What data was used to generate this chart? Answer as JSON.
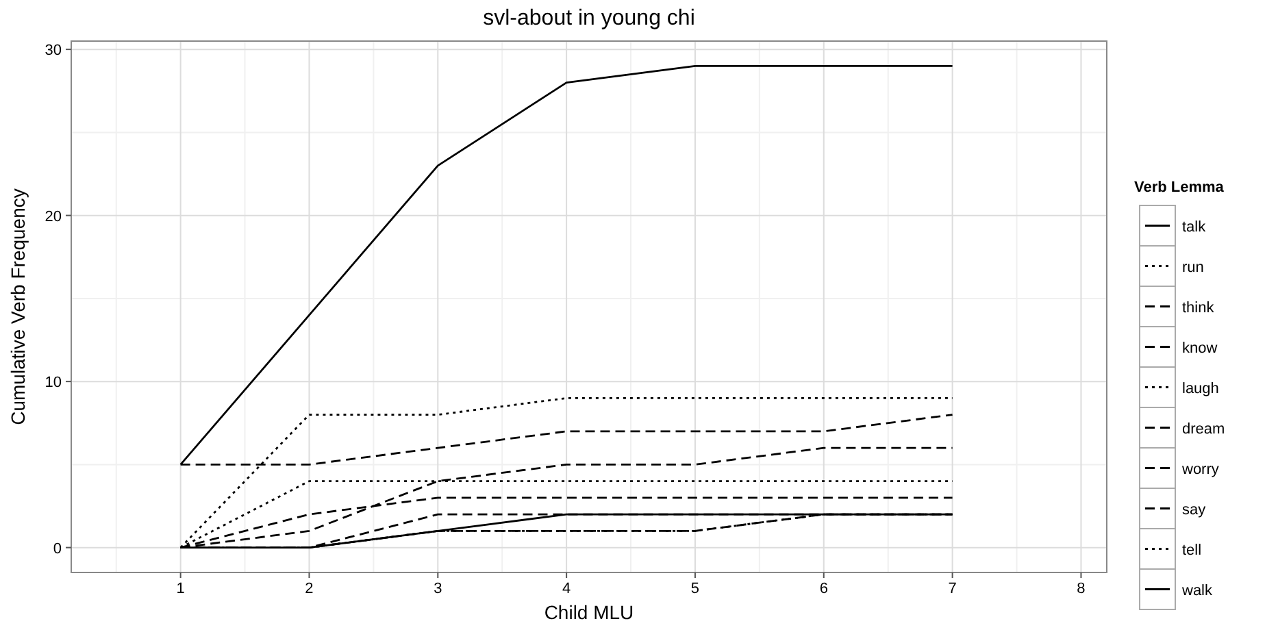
{
  "chart_data": {
    "type": "line",
    "title": "svl-about in young chi",
    "xlabel": "Child MLU",
    "ylabel": "Cumulative Verb Frequency",
    "legend_title": "Verb Lemma",
    "x": [
      1,
      2,
      3,
      4,
      5,
      6,
      7
    ],
    "series": [
      {
        "name": "talk",
        "color": "#000000",
        "line_style": "solid",
        "values": [
          5,
          14,
          23,
          28,
          29,
          29,
          29
        ]
      },
      {
        "name": "run",
        "color": "#000000",
        "line_style": "dotted",
        "values": [
          0,
          8,
          8,
          9,
          9,
          9,
          9
        ]
      },
      {
        "name": "think",
        "color": "#000000",
        "line_style": "dashed",
        "values": [
          5,
          5,
          6,
          7,
          7,
          7,
          8
        ]
      },
      {
        "name": "know",
        "color": "#000000",
        "line_style": "dashed",
        "values": [
          0,
          1,
          4,
          5,
          5,
          6,
          6
        ]
      },
      {
        "name": "laugh",
        "color": "#000000",
        "line_style": "dotted",
        "values": [
          0,
          4,
          4,
          4,
          4,
          4,
          4
        ]
      },
      {
        "name": "dream",
        "color": "#000000",
        "line_style": "dashed",
        "values": [
          0,
          0,
          1,
          1,
          1,
          2,
          2
        ]
      },
      {
        "name": "worry",
        "color": "#000000",
        "line_style": "dashed",
        "values": [
          0,
          2,
          3,
          3,
          3,
          3,
          3
        ]
      },
      {
        "name": "say",
        "color": "#000000",
        "line_style": "dashed",
        "values": [
          0,
          0,
          2,
          2,
          2,
          2,
          2
        ]
      },
      {
        "name": "tell",
        "color": "#000000",
        "line_style": "dotted",
        "values": [
          0,
          0,
          1,
          1,
          1,
          2,
          2
        ]
      },
      {
        "name": "walk",
        "color": "#000000",
        "line_style": "solid",
        "values": [
          0,
          0,
          1,
          2,
          2,
          2,
          2
        ]
      }
    ],
    "xlim": [
      0.15,
      8.2
    ],
    "xticks": [
      1,
      2,
      3,
      4,
      5,
      6,
      7,
      8
    ],
    "ylim": [
      -1.5,
      30.5
    ],
    "yticks": [
      0,
      10,
      20,
      30
    ],
    "grid": true,
    "legend": "right",
    "marker": "none"
  }
}
